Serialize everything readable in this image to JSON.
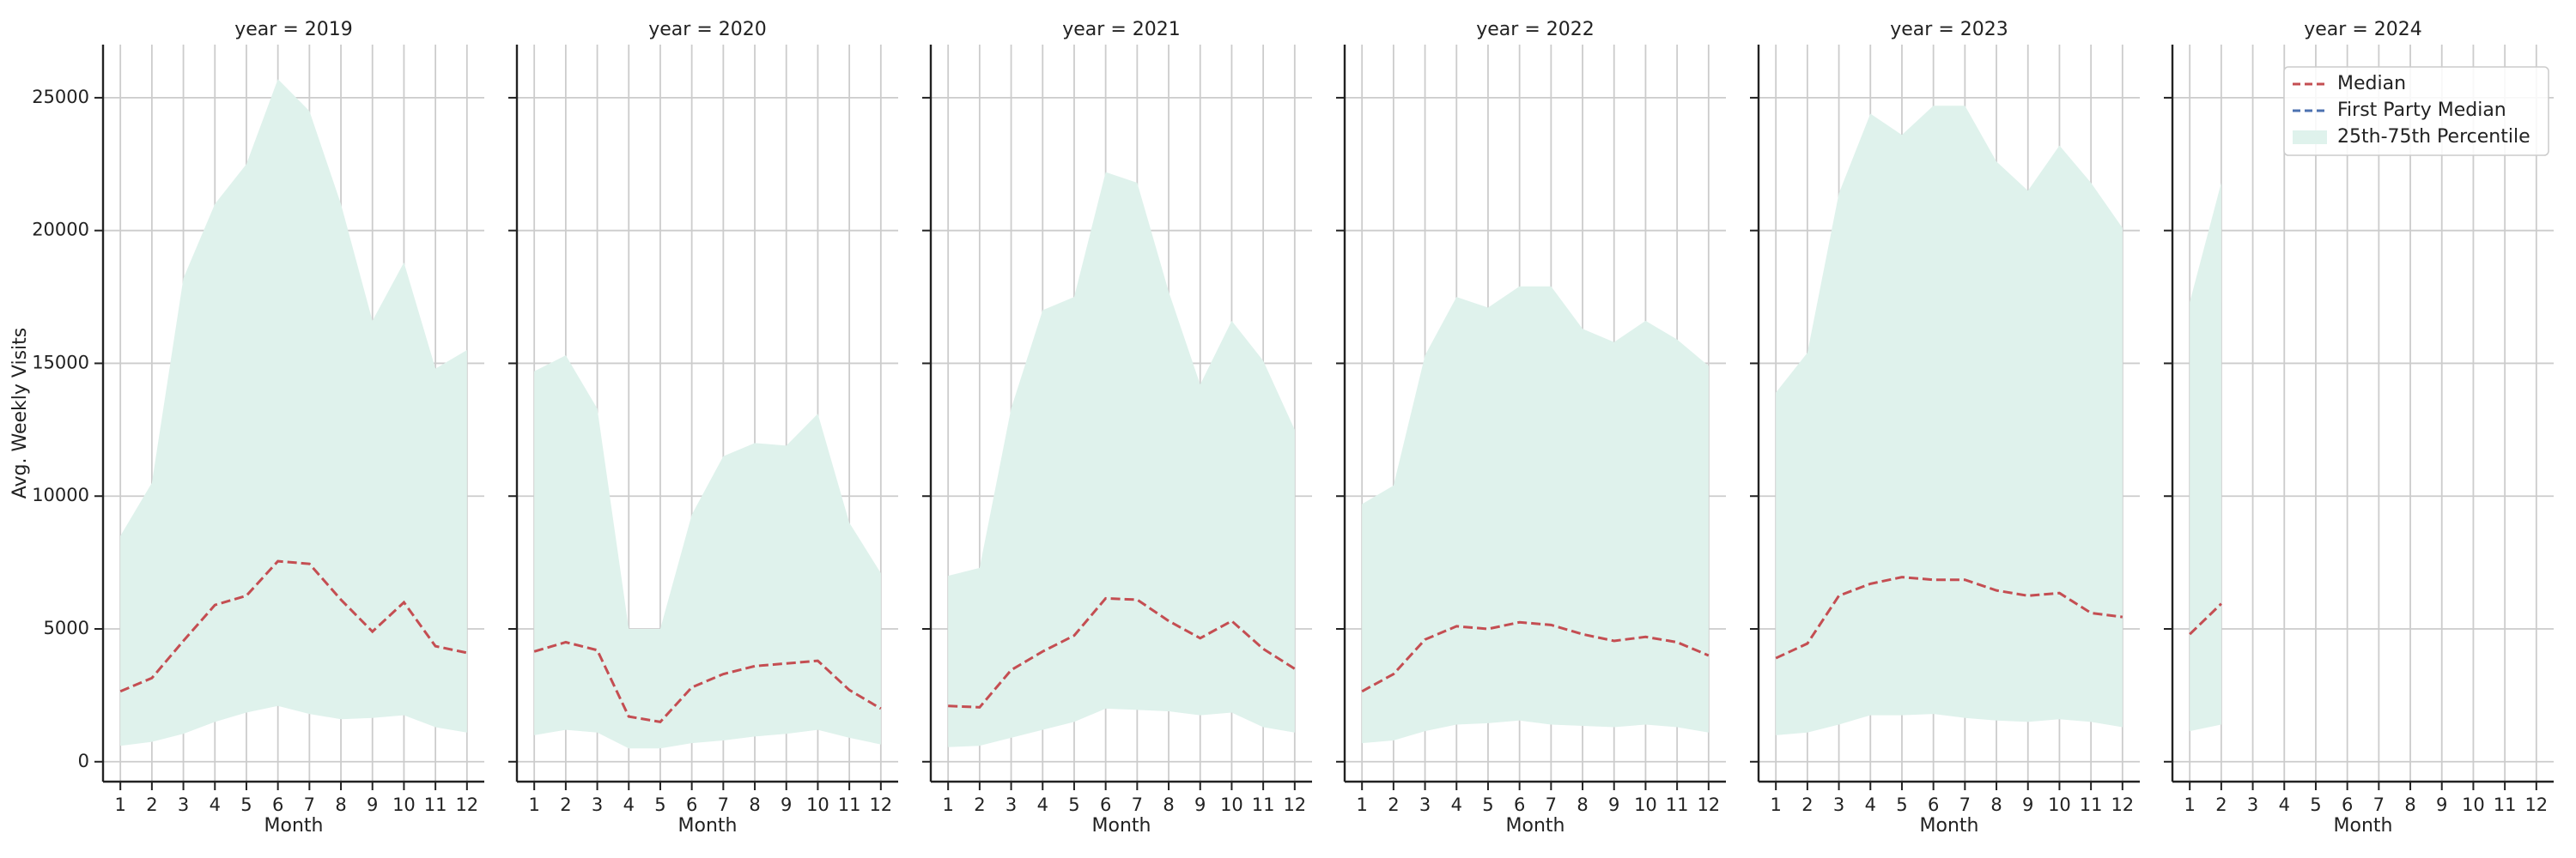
{
  "chart_data": [
    {
      "type": "line",
      "title": "year = 2019",
      "ylabel": "Avg. Weekly Visits",
      "xlabel": "Month",
      "x": [
        1,
        2,
        3,
        4,
        5,
        6,
        7,
        8,
        9,
        10,
        11,
        12
      ],
      "xlim": [
        0.45,
        12.55
      ],
      "xticks": [
        1,
        2,
        3,
        4,
        5,
        6,
        7,
        8,
        9,
        10,
        11,
        12
      ],
      "ylim": [
        -750,
        27000
      ],
      "yticks": [
        0,
        5000,
        10000,
        15000,
        20000,
        25000
      ],
      "grid": true,
      "series": [
        {
          "name": "Median",
          "color": "#c44e52",
          "values": [
            2650,
            3150,
            4550,
            5900,
            6250,
            7550,
            7450,
            6100,
            4900,
            6000,
            4350,
            4100
          ]
        },
        {
          "name": "First Party Median",
          "color": "#4c72b0",
          "values": [
            null,
            null,
            null,
            null,
            null,
            null,
            null,
            null,
            null,
            null,
            null,
            null
          ]
        }
      ],
      "band": {
        "name": "25th-75th Percentile",
        "color": "#dff2ec",
        "lower": [
          600,
          750,
          1050,
          1500,
          1850,
          2100,
          1800,
          1600,
          1650,
          1750,
          1300,
          1100
        ],
        "upper": [
          8500,
          10500,
          18200,
          21000,
          22500,
          25700,
          24500,
          21000,
          16600,
          18800,
          14800,
          15500
        ]
      }
    },
    {
      "type": "line",
      "title": "year = 2020",
      "xlabel": "Month",
      "x": [
        1,
        2,
        3,
        4,
        5,
        6,
        7,
        8,
        9,
        10,
        11,
        12
      ],
      "xlim": [
        0.45,
        12.55
      ],
      "xticks": [
        1,
        2,
        3,
        4,
        5,
        6,
        7,
        8,
        9,
        10,
        11,
        12
      ],
      "ylim": [
        -750,
        27000
      ],
      "yticks": [
        0,
        5000,
        10000,
        15000,
        20000,
        25000
      ],
      "grid": true,
      "series": [
        {
          "name": "Median",
          "color": "#c44e52",
          "values": [
            4150,
            4500,
            4200,
            1700,
            1500,
            2800,
            3300,
            3600,
            3700,
            3800,
            2700,
            2000
          ]
        },
        {
          "name": "First Party Median",
          "color": "#4c72b0",
          "values": [
            null,
            null,
            null,
            null,
            null,
            null,
            null,
            null,
            null,
            null,
            null,
            null
          ]
        }
      ],
      "band": {
        "name": "25th-75th Percentile",
        "color": "#dff2ec",
        "lower": [
          1000,
          1200,
          1100,
          500,
          500,
          700,
          800,
          950,
          1050,
          1200,
          900,
          650
        ],
        "upper": [
          14700,
          15300,
          13300,
          5000,
          5000,
          9300,
          11500,
          12000,
          11900,
          13100,
          9000,
          7100
        ]
      }
    },
    {
      "type": "line",
      "title": "year = 2021",
      "xlabel": "Month",
      "x": [
        1,
        2,
        3,
        4,
        5,
        6,
        7,
        8,
        9,
        10,
        11,
        12
      ],
      "xlim": [
        0.45,
        12.55
      ],
      "xticks": [
        1,
        2,
        3,
        4,
        5,
        6,
        7,
        8,
        9,
        10,
        11,
        12
      ],
      "ylim": [
        -750,
        27000
      ],
      "yticks": [
        0,
        5000,
        10000,
        15000,
        20000,
        25000
      ],
      "grid": true,
      "series": [
        {
          "name": "Median",
          "color": "#c44e52",
          "values": [
            2100,
            2050,
            3450,
            4150,
            4750,
            6150,
            6100,
            5300,
            4650,
            5300,
            4250,
            3500
          ]
        },
        {
          "name": "First Party Median",
          "color": "#4c72b0",
          "values": [
            null,
            null,
            null,
            null,
            null,
            null,
            null,
            null,
            null,
            null,
            null,
            null
          ]
        }
      ],
      "band": {
        "name": "25th-75th Percentile",
        "color": "#dff2ec",
        "lower": [
          550,
          600,
          900,
          1200,
          1500,
          2000,
          1950,
          1900,
          1750,
          1850,
          1300,
          1100
        ],
        "upper": [
          7000,
          7300,
          13300,
          17000,
          17500,
          22200,
          21800,
          17700,
          14200,
          16600,
          15100,
          12500
        ]
      }
    },
    {
      "type": "line",
      "title": "year = 2022",
      "xlabel": "Month",
      "x": [
        1,
        2,
        3,
        4,
        5,
        6,
        7,
        8,
        9,
        10,
        11,
        12
      ],
      "xlim": [
        0.45,
        12.55
      ],
      "xticks": [
        1,
        2,
        3,
        4,
        5,
        6,
        7,
        8,
        9,
        10,
        11,
        12
      ],
      "ylim": [
        -750,
        27000
      ],
      "yticks": [
        0,
        5000,
        10000,
        15000,
        20000,
        25000
      ],
      "grid": true,
      "series": [
        {
          "name": "Median",
          "color": "#c44e52",
          "values": [
            2650,
            3300,
            4600,
            5100,
            5000,
            5250,
            5150,
            4800,
            4550,
            4700,
            4500,
            4000
          ]
        },
        {
          "name": "First Party Median",
          "color": "#4c72b0",
          "values": [
            null,
            null,
            null,
            null,
            null,
            null,
            null,
            null,
            null,
            null,
            null,
            null
          ]
        }
      ],
      "band": {
        "name": "25th-75th Percentile",
        "color": "#dff2ec",
        "lower": [
          700,
          800,
          1150,
          1400,
          1450,
          1550,
          1400,
          1350,
          1300,
          1400,
          1300,
          1100
        ],
        "upper": [
          9700,
          10400,
          15300,
          17500,
          17100,
          17900,
          17900,
          16300,
          15800,
          16600,
          15900,
          14900
        ]
      }
    },
    {
      "type": "line",
      "title": "year = 2023",
      "xlabel": "Month",
      "x": [
        1,
        2,
        3,
        4,
        5,
        6,
        7,
        8,
        9,
        10,
        11,
        12
      ],
      "xlim": [
        0.45,
        12.55
      ],
      "xticks": [
        1,
        2,
        3,
        4,
        5,
        6,
        7,
        8,
        9,
        10,
        11,
        12
      ],
      "ylim": [
        -750,
        27000
      ],
      "yticks": [
        0,
        5000,
        10000,
        15000,
        20000,
        25000
      ],
      "grid": true,
      "series": [
        {
          "name": "Median",
          "color": "#c44e52",
          "values": [
            3900,
            4450,
            6250,
            6700,
            6950,
            6850,
            6850,
            6450,
            6250,
            6350,
            5600,
            5450
          ]
        },
        {
          "name": "First Party Median",
          "color": "#4c72b0",
          "values": [
            null,
            null,
            null,
            null,
            null,
            null,
            null,
            null,
            null,
            null,
            null,
            null
          ]
        }
      ],
      "band": {
        "name": "25th-75th Percentile",
        "color": "#dff2ec",
        "lower": [
          1000,
          1100,
          1400,
          1750,
          1750,
          1800,
          1650,
          1550,
          1500,
          1600,
          1500,
          1300
        ],
        "upper": [
          13900,
          15400,
          21400,
          24400,
          23600,
          24700,
          24700,
          22600,
          21500,
          23200,
          21800,
          20100
        ]
      }
    },
    {
      "type": "line",
      "title": "year = 2024",
      "xlabel": "Month",
      "legend": "upper right",
      "x": [
        1,
        2,
        3,
        4,
        5,
        6,
        7,
        8,
        9,
        10,
        11,
        12
      ],
      "xlim": [
        0.45,
        12.55
      ],
      "xticks": [
        1,
        2,
        3,
        4,
        5,
        6,
        7,
        8,
        9,
        10,
        11,
        12
      ],
      "ylim": [
        -750,
        27000
      ],
      "yticks": [
        0,
        5000,
        10000,
        15000,
        20000,
        25000
      ],
      "grid": true,
      "series": [
        {
          "name": "Median",
          "color": "#c44e52",
          "values": [
            4800,
            5950,
            null,
            null,
            null,
            null,
            null,
            null,
            null,
            null,
            null,
            null
          ]
        },
        {
          "name": "First Party Median",
          "color": "#4c72b0",
          "values": [
            null,
            null,
            null,
            null,
            null,
            null,
            null,
            null,
            null,
            null,
            null,
            null
          ]
        }
      ],
      "band": {
        "name": "25th-75th Percentile",
        "color": "#dff2ec",
        "lower": [
          1150,
          1400,
          null,
          null,
          null,
          null,
          null,
          null,
          null,
          null,
          null,
          null
        ],
        "upper": [
          17300,
          21800,
          null,
          null,
          null,
          null,
          null,
          null,
          null,
          null,
          null,
          null
        ]
      }
    }
  ]
}
